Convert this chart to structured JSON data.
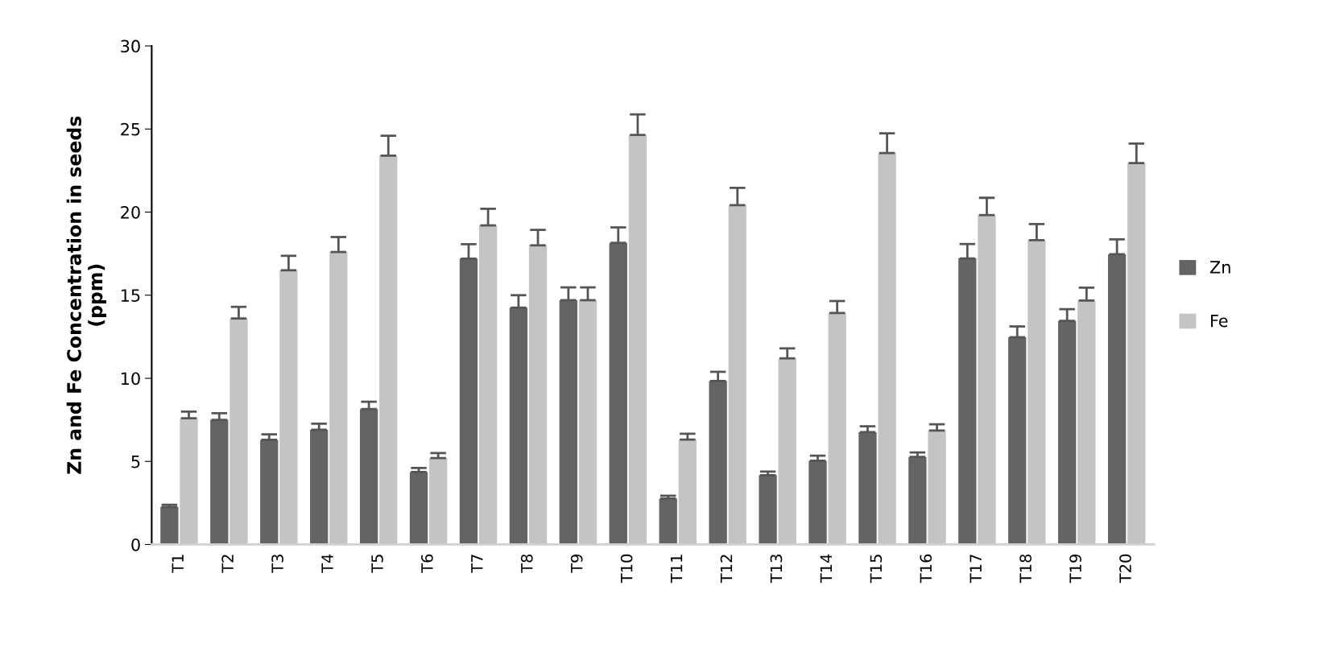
{
  "chart_data": {
    "type": "bar",
    "ylabel": "Zn and Fe Concentration in seeds\n(ppm)",
    "categories": [
      "T1",
      "T2",
      "T3",
      "T4",
      "T5",
      "T6",
      "T7",
      "T8",
      "T9",
      "T10",
      "T11",
      "T12",
      "T13",
      "T14",
      "T15",
      "T16",
      "T17",
      "T18",
      "T19",
      "T20"
    ],
    "series": [
      {
        "name": "Zn",
        "color": "#646466",
        "values": [
          2.26,
          7.5,
          6.3,
          6.9,
          8.15,
          4.36,
          17.2,
          14.25,
          14.7,
          18.15,
          2.76,
          9.84,
          4.17,
          5.04,
          6.76,
          5.27,
          17.21,
          12.47,
          13.46,
          17.46
        ],
        "errors": [
          [
            2.26,
            2.39
          ],
          [
            7.5,
            7.9
          ],
          [
            6.3,
            6.63
          ],
          [
            6.9,
            7.27
          ],
          [
            8.15,
            8.59
          ],
          [
            4.36,
            4.61
          ],
          [
            17.2,
            18.07
          ],
          [
            14.25,
            15.0
          ],
          [
            14.7,
            15.47
          ],
          [
            18.15,
            19.08
          ],
          [
            2.76,
            2.93
          ],
          [
            9.84,
            10.39
          ],
          [
            4.17,
            4.39
          ],
          [
            5.04,
            5.34
          ],
          [
            6.76,
            7.11
          ],
          [
            5.27,
            5.54
          ],
          [
            17.21,
            18.08
          ],
          [
            12.47,
            13.12
          ],
          [
            13.46,
            14.16
          ],
          [
            17.46,
            18.36
          ]
        ]
      },
      {
        "name": "Fe",
        "color": "#c3c4c6",
        "values": [
          7.6,
          13.6,
          16.5,
          17.6,
          23.4,
          5.2,
          19.2,
          18.0,
          14.7,
          24.64,
          6.31,
          20.42,
          11.2,
          13.93,
          23.55,
          6.86,
          19.82,
          18.31,
          14.68,
          22.95
        ],
        "errors": [
          [
            7.6,
            8.0
          ],
          [
            13.6,
            14.3
          ],
          [
            16.5,
            17.37
          ],
          [
            17.6,
            18.5
          ],
          [
            23.4,
            24.6
          ],
          [
            5.2,
            5.5
          ],
          [
            19.2,
            20.2
          ],
          [
            18.0,
            18.93
          ],
          [
            14.7,
            15.47
          ],
          [
            24.64,
            25.88
          ],
          [
            6.31,
            6.66
          ],
          [
            20.42,
            21.46
          ],
          [
            11.2,
            11.8
          ],
          [
            13.93,
            14.65
          ],
          [
            23.55,
            24.74
          ],
          [
            6.86,
            7.23
          ],
          [
            19.82,
            20.86
          ],
          [
            18.31,
            19.28
          ],
          [
            14.68,
            15.45
          ],
          [
            22.95,
            24.12
          ]
        ]
      }
    ],
    "ylim": [
      0,
      30
    ],
    "yticks": [
      0,
      5,
      10,
      15,
      20,
      25,
      30
    ],
    "grid": false,
    "legend": "right"
  }
}
